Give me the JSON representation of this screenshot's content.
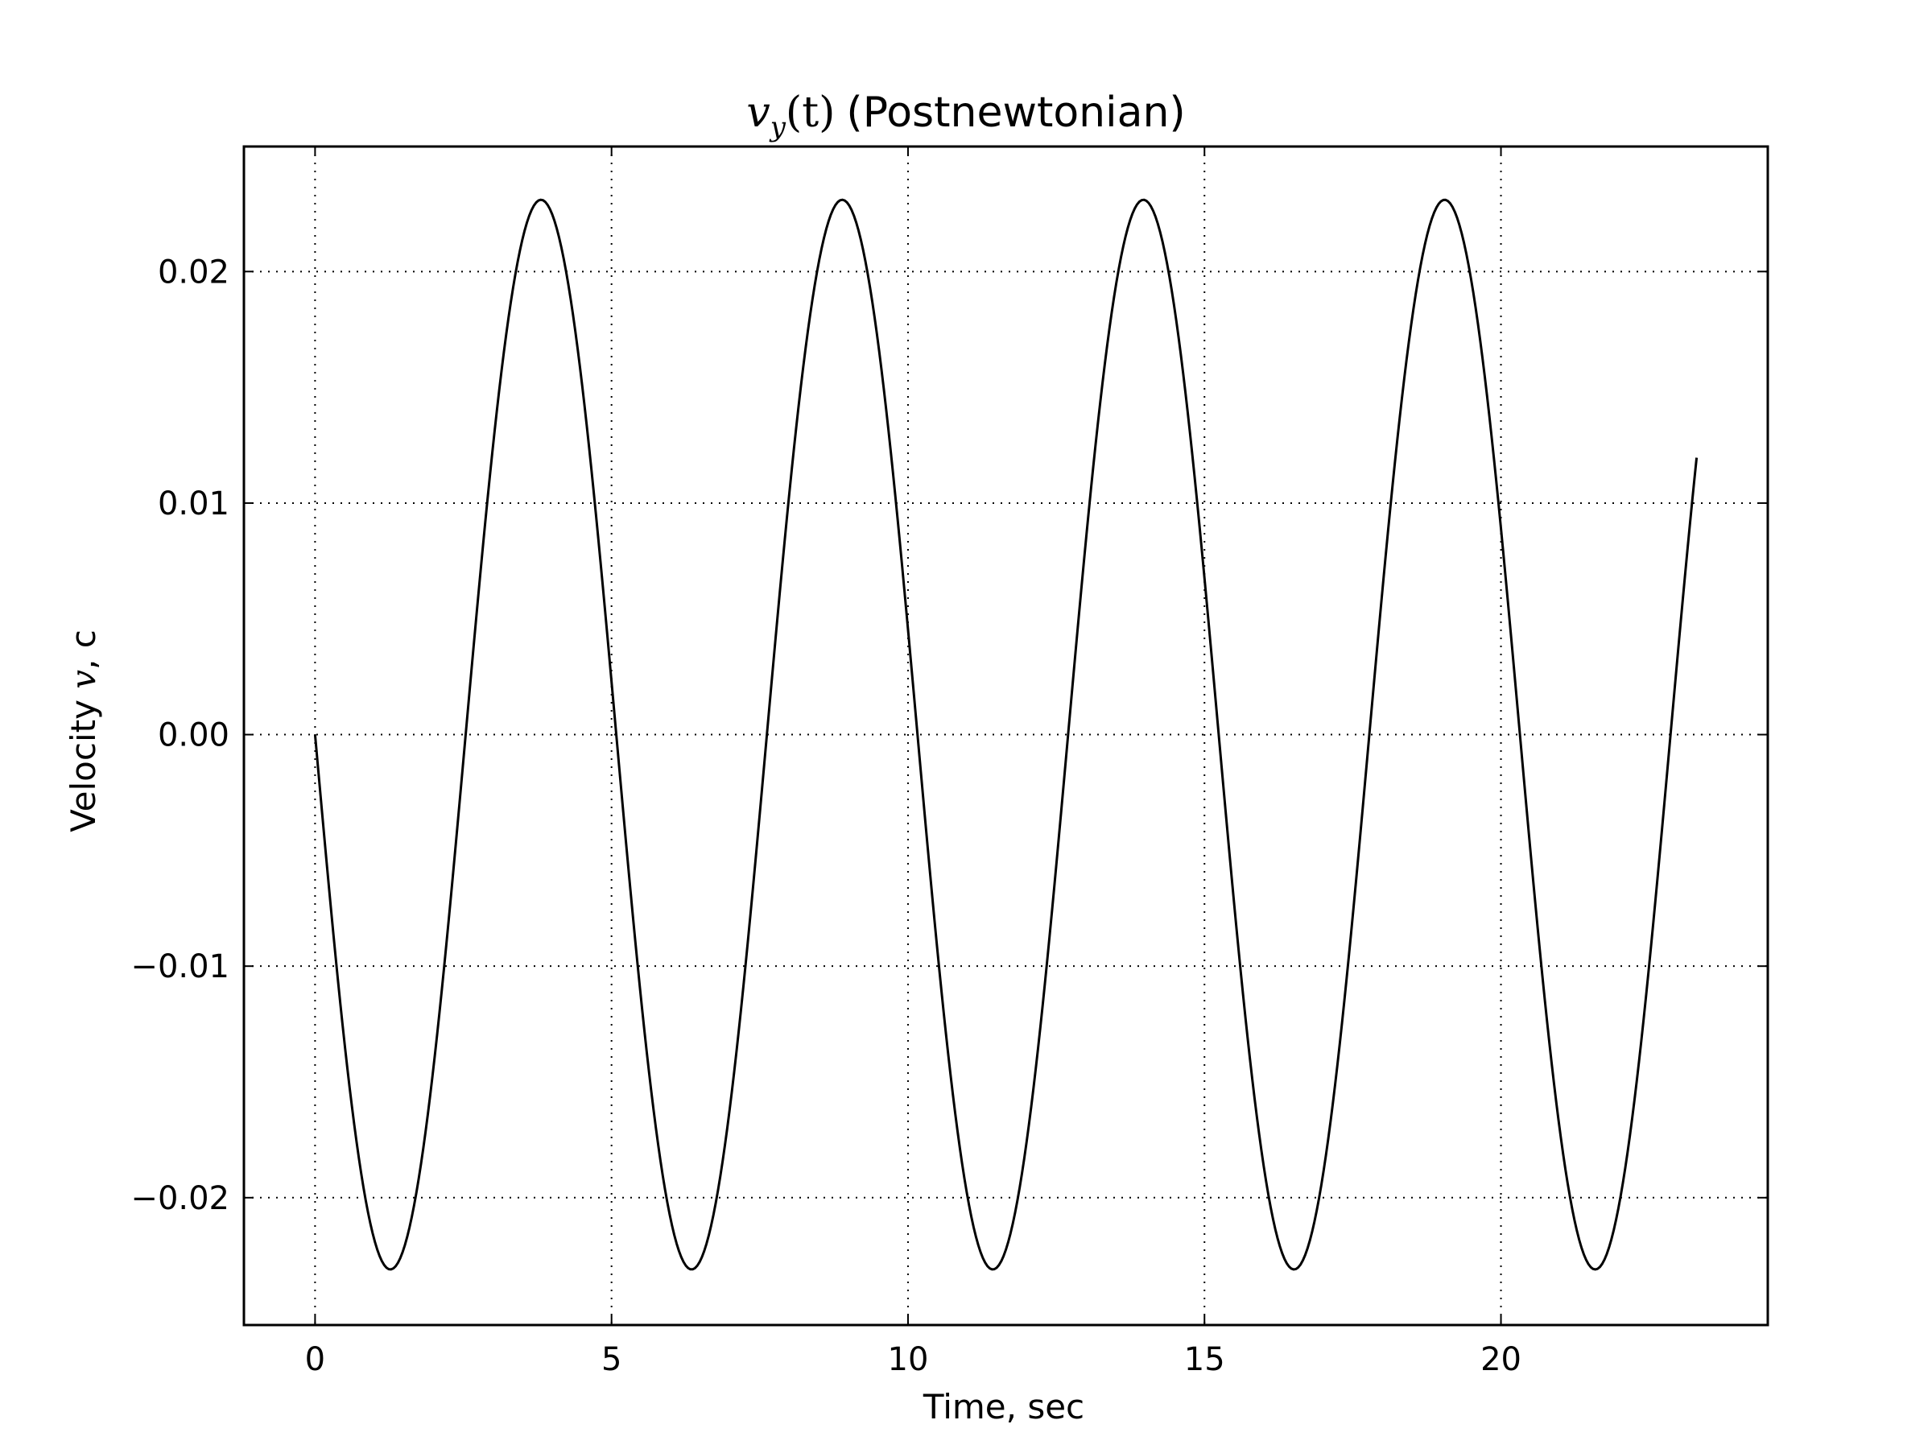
{
  "chart_data": {
    "type": "line",
    "title": {
      "math_main": "v",
      "math_sub": "y",
      "math_arg": "(t)",
      "text": "(Postnewtonian)"
    },
    "xlabel": "Time, sec",
    "ylabel": {
      "prefix": "Velocity ",
      "math": "v",
      "suffix": ", c"
    },
    "xlim": [
      -1.2,
      24.5
    ],
    "ylim": [
      -0.0255,
      0.0254
    ],
    "xticks": [
      0,
      5,
      10,
      15,
      20
    ],
    "xtick_labels": [
      "0",
      "5",
      "10",
      "15",
      "20"
    ],
    "yticks": [
      0.02,
      0.01,
      0.0,
      -0.01,
      -0.02
    ],
    "ytick_labels": [
      "0.02",
      "0.01",
      "0.00",
      "−0.01",
      "−0.02"
    ],
    "grid": true,
    "series": [
      {
        "name": "v_y(t)",
        "color": "#000000",
        "model": "v = -A * sin(2*pi*t / T)",
        "amplitude": 0.0231,
        "period": 5.08,
        "x_start": 0.0,
        "x_end": 23.3,
        "samples": 600
      }
    ]
  }
}
